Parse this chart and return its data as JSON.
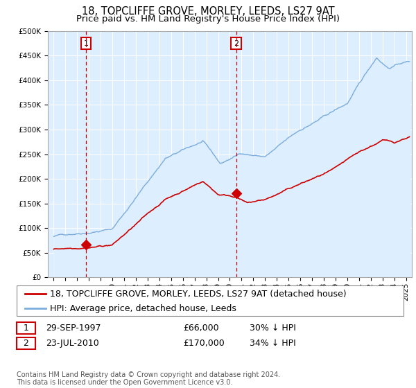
{
  "title_line1": "18, TOPCLIFFE GROVE, MORLEY, LEEDS, LS27 9AT",
  "title_line2": "Price paid vs. HM Land Registry's House Price Index (HPI)",
  "legend_label_red": "18, TOPCLIFFE GROVE, MORLEY, LEEDS, LS27 9AT (detached house)",
  "legend_label_blue": "HPI: Average price, detached house, Leeds",
  "purchase1_date": "29-SEP-1997",
  "purchase1_price": 66000,
  "purchase1_note": "30% ↓ HPI",
  "purchase2_date": "23-JUL-2010",
  "purchase2_price": 170000,
  "purchase2_note": "34% ↓ HPI",
  "purchase1_year": 1997.75,
  "purchase2_year": 2010.55,
  "footer": "Contains HM Land Registry data © Crown copyright and database right 2024.\nThis data is licensed under the Open Government Licence v3.0.",
  "ylim_max": 500000,
  "yticks": [
    0,
    50000,
    100000,
    150000,
    200000,
    250000,
    300000,
    350000,
    400000,
    450000,
    500000
  ],
  "xlim_start": 1994.5,
  "xlim_end": 2025.5,
  "background_color": "#ddeeff",
  "grid_color": "#ffffff",
  "red_color": "#cc0000",
  "blue_color": "#7aacdd",
  "vline_color": "#cc0000",
  "box_color": "#cc0000",
  "title_fontsize": 10.5,
  "subtitle_fontsize": 9.5,
  "tick_fontsize": 7.5,
  "legend_fontsize": 9,
  "table_fontsize": 9,
  "footer_fontsize": 7
}
